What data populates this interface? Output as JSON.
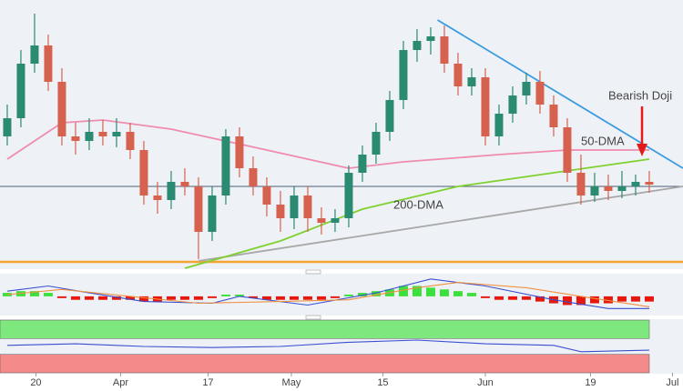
{
  "chart_data": {
    "type": "candlestick",
    "open": [
      150,
      170,
      230,
      250,
      210,
      150,
      145,
      155,
      150,
      155,
      135,
      85,
      80,
      100,
      95,
      45,
      85,
      150,
      115,
      95,
      75,
      60,
      85,
      60,
      55,
      60,
      110,
      130,
      155,
      190,
      245,
      255,
      260,
      230,
      205,
      215,
      150,
      175,
      195,
      210,
      185,
      160,
      110,
      85,
      95,
      90,
      95,
      100
    ],
    "high": [
      185,
      245,
      285,
      262,
      225,
      165,
      170,
      168,
      170,
      165,
      145,
      100,
      112,
      115,
      105,
      95,
      158,
      160,
      128,
      105,
      90,
      95,
      95,
      72,
      70,
      118,
      140,
      165,
      200,
      255,
      268,
      270,
      272,
      242,
      225,
      225,
      185,
      205,
      220,
      222,
      195,
      170,
      130,
      110,
      108,
      112,
      108,
      112
    ],
    "low": [
      140,
      160,
      220,
      200,
      140,
      130,
      135,
      140,
      138,
      125,
      75,
      65,
      70,
      85,
      15,
      35,
      75,
      105,
      85,
      62,
      45,
      48,
      45,
      42,
      45,
      50,
      100,
      120,
      145,
      180,
      232,
      240,
      220,
      195,
      195,
      140,
      140,
      165,
      185,
      175,
      150,
      100,
      75,
      78,
      80,
      82,
      85,
      88
    ],
    "close": [
      170,
      230,
      250,
      210,
      150,
      145,
      155,
      150,
      155,
      135,
      85,
      80,
      100,
      95,
      45,
      85,
      150,
      115,
      95,
      75,
      60,
      85,
      60,
      55,
      60,
      110,
      130,
      155,
      190,
      245,
      255,
      260,
      230,
      205,
      215,
      150,
      175,
      195,
      210,
      185,
      160,
      110,
      85,
      95,
      90,
      95,
      100,
      97
    ],
    "up_color": "#2b8a72",
    "down_color": "#d5614e",
    "ylim": [
      5,
      300
    ],
    "xlim": [
      -0.53,
      49.47
    ],
    "xticks": [
      {
        "value": 2.1,
        "label": "20"
      },
      {
        "value": 8.3,
        "label": "Apr"
      },
      {
        "value": 14.7,
        "label": "17"
      },
      {
        "value": 20.8,
        "label": "May"
      },
      {
        "value": 27.5,
        "label": "15"
      },
      {
        "value": 35,
        "label": "Jun"
      },
      {
        "value": 42.7,
        "label": "19"
      },
      {
        "value": 48.7,
        "label": "Jul"
      }
    ],
    "series": [
      {
        "name": "50-DMA",
        "color": "#f08cae",
        "x": [
          0,
          4,
          7,
          12,
          19,
          25,
          29,
          36,
          41,
          47
        ],
        "values": [
          125,
          165,
          168,
          158,
          135,
          115,
          122,
          130,
          135,
          135
        ]
      },
      {
        "name": "200-DMA",
        "color": "#7fd12f",
        "x": [
          13,
          20,
          26,
          33,
          40,
          47
        ],
        "values": [
          5,
          35,
          70,
          95,
          110,
          125
        ]
      }
    ],
    "trendlines": [
      {
        "color": "#3a9be0",
        "x": [
          31.5,
          49.47
        ],
        "values": [
          278,
          115
        ]
      },
      {
        "color": "#a8a8a8",
        "x": [
          14,
          49.47
        ],
        "values": [
          13,
          95
        ]
      }
    ],
    "levels": [
      {
        "value": 95,
        "color": "#4a6070"
      },
      {
        "value": 12,
        "color": "#f7a531"
      }
    ],
    "annotation": {
      "text": "Bearish Doji",
      "color": "#f07f3c"
    },
    "macd": {
      "ylim": [
        -1,
        1.2
      ],
      "up_color": "#3ce03c",
      "down_color": "#e8170c",
      "histogram": [
        0.2,
        0.3,
        0.3,
        0.2,
        -0.1,
        -0.2,
        -0.2,
        -0.2,
        -0.2,
        -0.2,
        -0.3,
        -0.3,
        -0.2,
        -0.2,
        -0.2,
        -0.1,
        0.1,
        0.1,
        -0.1,
        -0.2,
        -0.2,
        -0.2,
        -0.2,
        -0.2,
        -0.1,
        0.1,
        0.2,
        0.3,
        0.4,
        0.6,
        0.6,
        0.5,
        0.4,
        0.3,
        0.2,
        -0.1,
        -0.2,
        -0.2,
        -0.2,
        -0.3,
        -0.4,
        -0.5,
        -0.5,
        -0.4,
        -0.4,
        -0.3,
        -0.3,
        -0.3
      ],
      "series": [
        {
          "color": "#3a4fd0",
          "x": [
            0,
            3,
            6,
            10,
            15,
            17,
            22,
            27,
            31,
            35,
            40,
            44,
            47
          ],
          "values": [
            0.3,
            0.6,
            0.2,
            -0.3,
            -0.4,
            0,
            -0.5,
            0.2,
            1.0,
            0.6,
            -0.2,
            -0.7,
            -0.7
          ]
        },
        {
          "color": "#f09040",
          "x": [
            0,
            4,
            9,
            14,
            20,
            25,
            30,
            33,
            38,
            42,
            47
          ],
          "values": [
            0.1,
            0.4,
            0,
            -0.4,
            -0.3,
            -0.2,
            0.5,
            0.8,
            0.5,
            0,
            -0.6
          ]
        }
      ]
    },
    "rsi": {
      "ylim": [
        0,
        100
      ],
      "zones": [
        {
          "from": 65,
          "to": 100,
          "color": "#7ee87e"
        },
        {
          "from": 0,
          "to": 35,
          "color": "#f58a8a"
        }
      ],
      "series": [
        {
          "color": "#3a4fd0",
          "x": [
            0,
            5,
            10,
            15,
            20,
            25,
            30,
            35,
            40,
            42,
            47
          ],
          "values": [
            52,
            55,
            50,
            48,
            50,
            58,
            62,
            55,
            52,
            40,
            43
          ]
        }
      ]
    }
  }
}
